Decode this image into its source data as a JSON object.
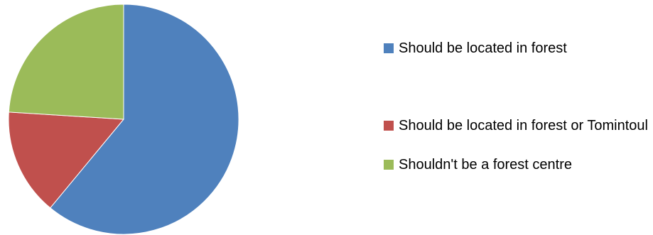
{
  "chart_data": {
    "type": "pie",
    "title": "",
    "categories": [
      "Should be located in forest",
      "Should be located in forest or Tomintoul",
      "Shouldn't be a forest centre"
    ],
    "values": [
      61,
      15,
      24
    ],
    "colors": [
      "#4F81BD",
      "#C0504D",
      "#9BBB59"
    ],
    "legend_position": "right"
  }
}
